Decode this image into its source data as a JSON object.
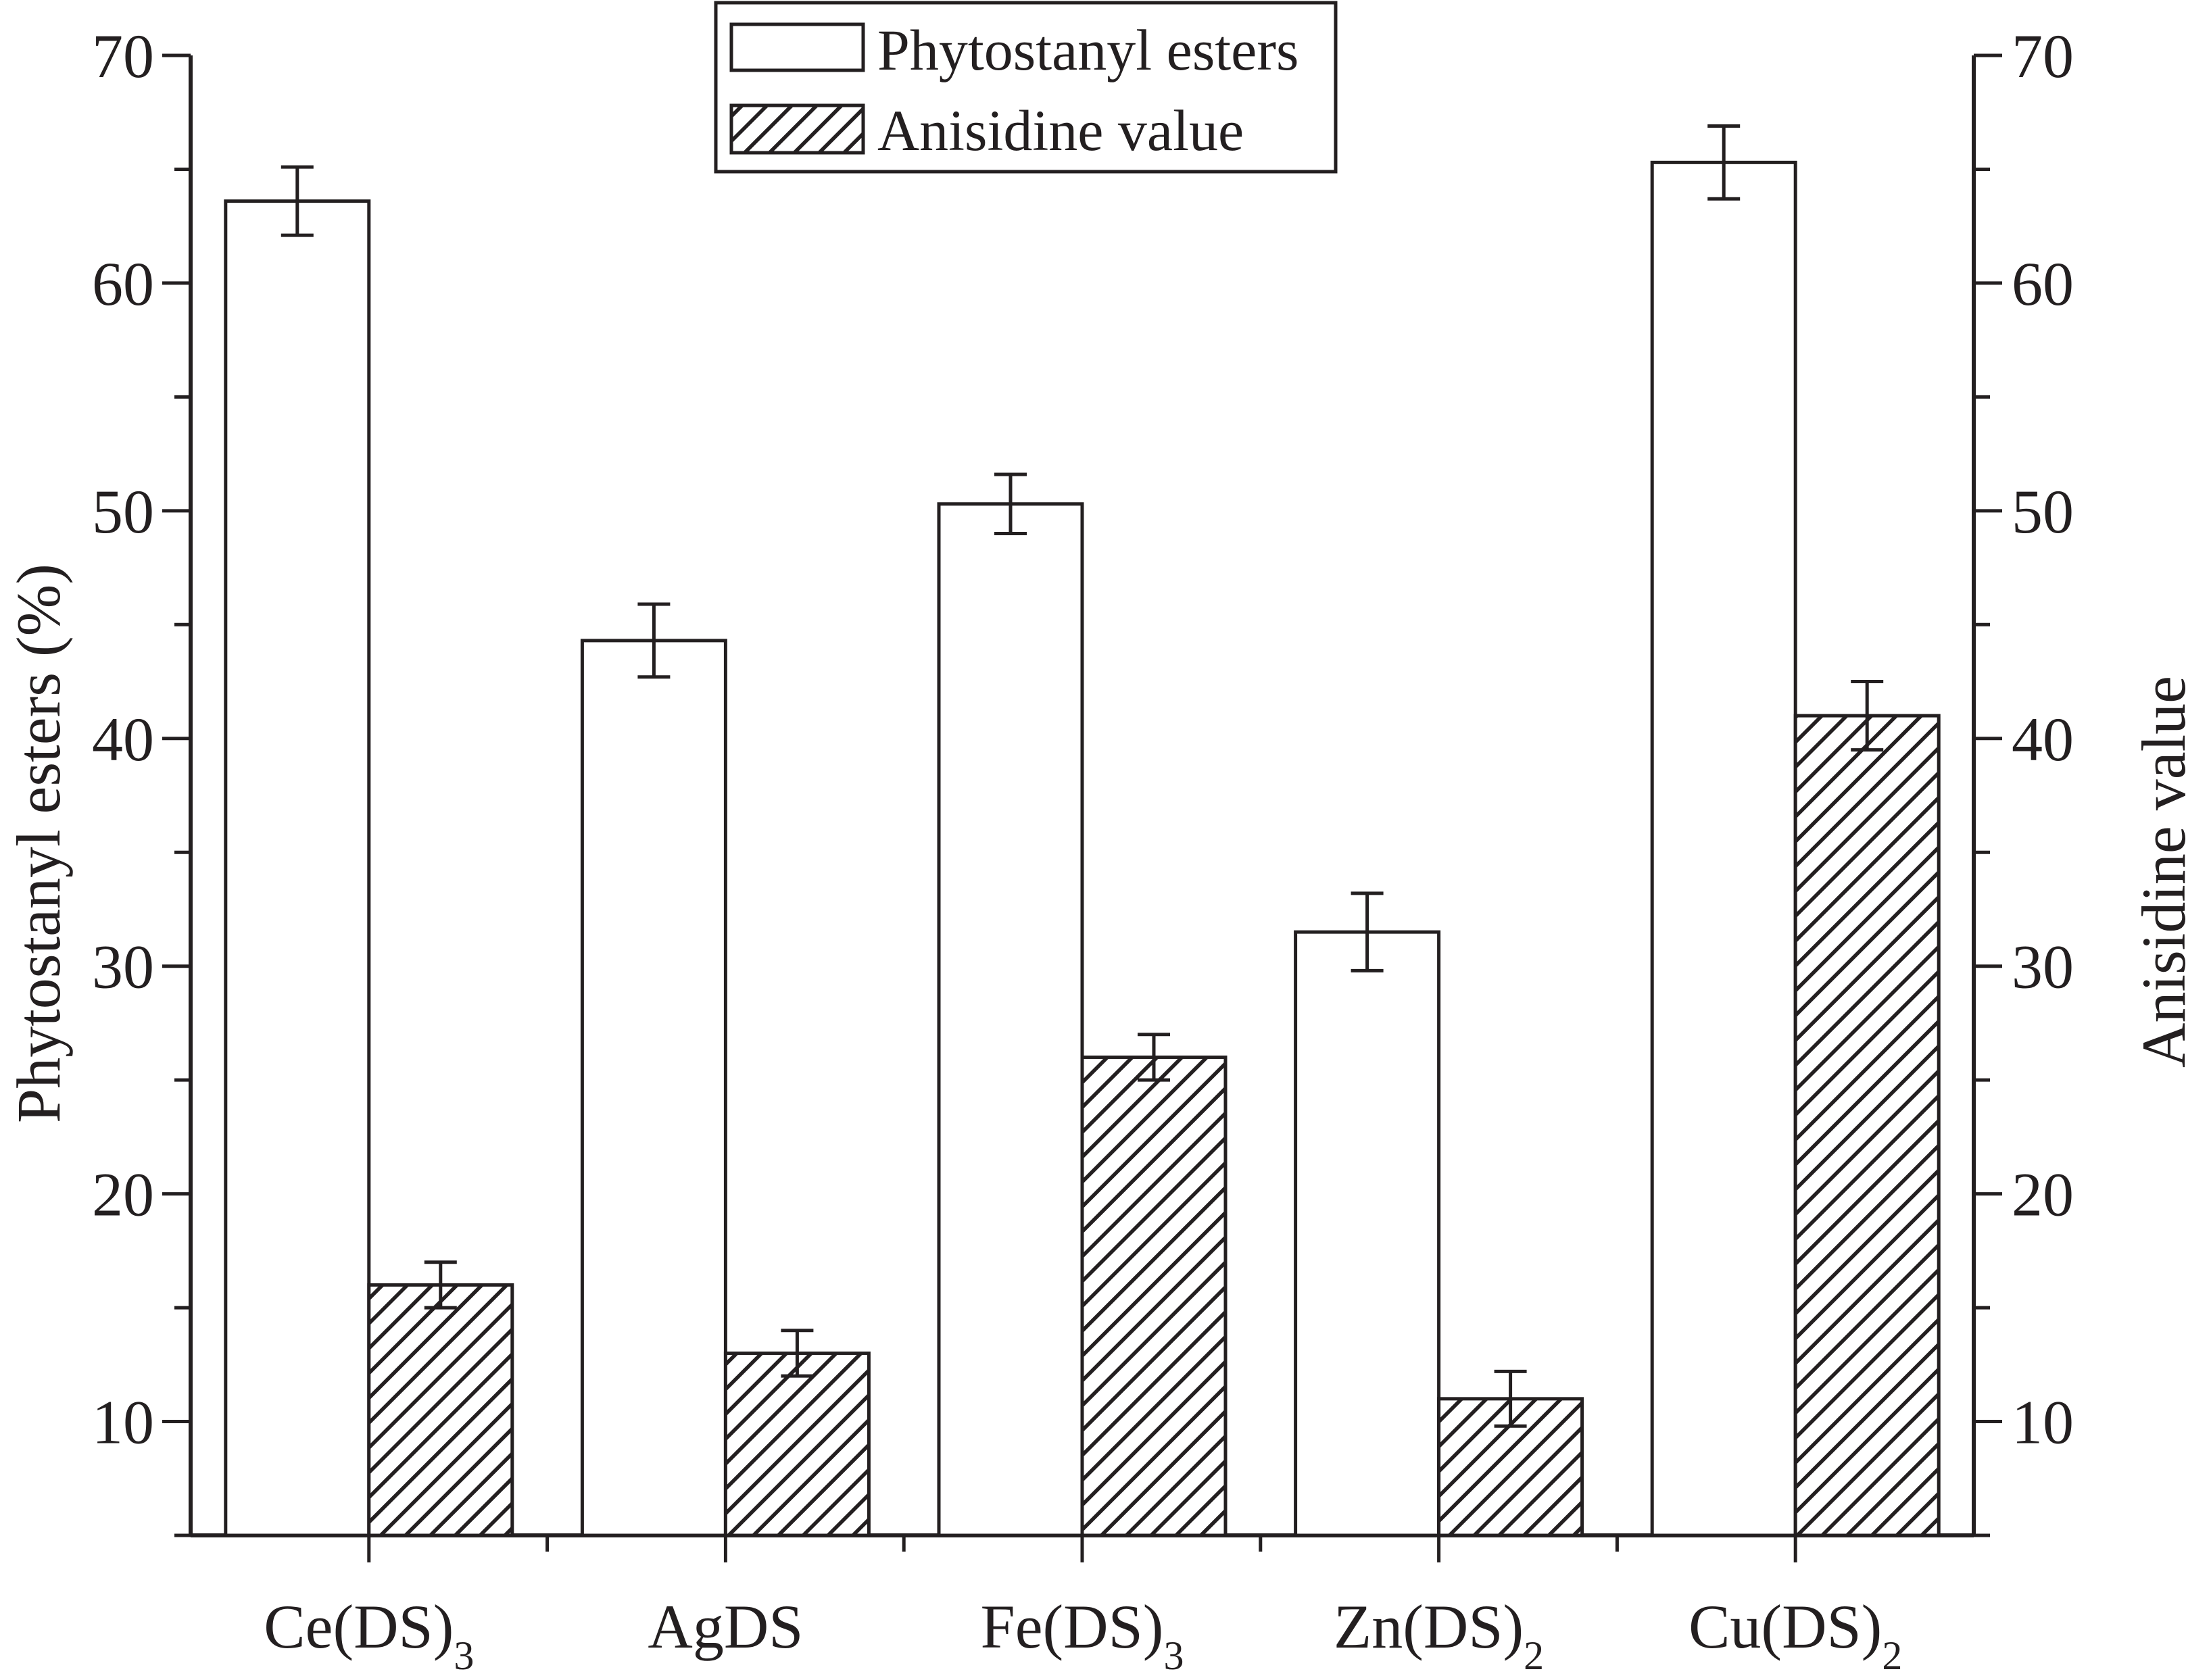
{
  "chart_data": {
    "type": "bar",
    "categories": [
      {
        "main": "Ce(DS)",
        "sub": "3"
      },
      {
        "main": "AgDS",
        "sub": ""
      },
      {
        "main": "Fe(DS)",
        "sub": "3"
      },
      {
        "main": "Zn(DS)",
        "sub": "2"
      },
      {
        "main": "Cu(DS)",
        "sub": "2"
      }
    ],
    "series": [
      {
        "name": "Phytostanyl esters",
        "axis": "left",
        "fill": "none (white)",
        "values": [
          63.6,
          44.3,
          50.3,
          31.5,
          65.3
        ],
        "errors": [
          1.5,
          1.6,
          1.3,
          1.7,
          1.6
        ]
      },
      {
        "name": "Anisidine value",
        "axis": "right",
        "fill": "diagonal hatch",
        "values": [
          16.0,
          13.0,
          26.0,
          11.0,
          41.0
        ],
        "errors": [
          1.0,
          1.0,
          1.0,
          1.2,
          1.5
        ]
      }
    ],
    "ylabel_left": "Phytostanyl esters (%)",
    "ylabel_right": "Anisidine value",
    "ylim": [
      5,
      70
    ],
    "yticks": [
      10,
      20,
      30,
      40,
      50,
      60,
      70
    ],
    "grid": false,
    "legend_position": "top-center",
    "colors": {
      "stroke": "#231f20",
      "background": "#ffffff"
    }
  }
}
